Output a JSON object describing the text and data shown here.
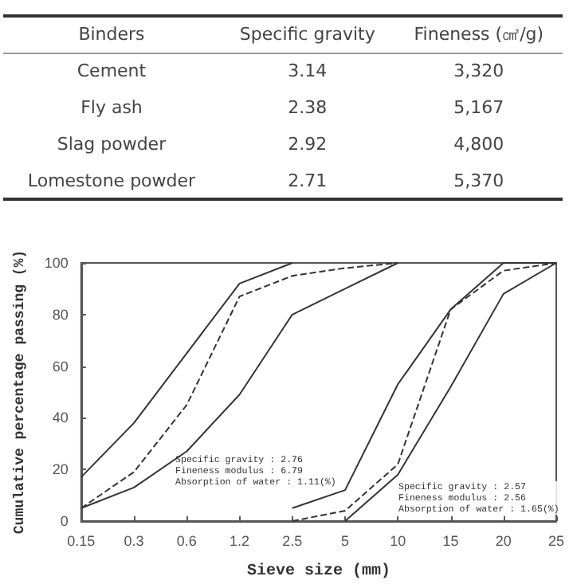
{
  "chart_data": [
    {
      "type": "other",
      "annotations": [
        "Binders",
        "Specific gravity",
        "Fineness (㎠/g)",
        "Cement",
        "3.14",
        "3,320",
        "Fly ash",
        "2.38",
        "5,167",
        "Slag powder",
        "2.92",
        "4,800",
        "Lomestone powder",
        "2.71",
        "5,370"
      ]
    },
    {
      "type": "line",
      "xlabel": "Sieve size (mm)",
      "ylabel": "Cumulative percentage passing (%)",
      "categories": [
        "0.15",
        "0.3",
        "0.6",
        "1.2",
        "2.5",
        "5",
        "10",
        "15",
        "20",
        "25"
      ],
      "series": [
        {
          "color": "#333333",
          "line_style": "solid",
          "values": [
            17,
            38,
            65,
            92,
            100,
            null,
            null,
            null,
            null,
            null
          ]
        },
        {
          "color": "#333333",
          "line_style": "dashed",
          "values": [
            5,
            19,
            45,
            87,
            95,
            98,
            100,
            null,
            null,
            null
          ]
        },
        {
          "color": "#333333",
          "line_style": "solid",
          "values": [
            5,
            13,
            27,
            49,
            80,
            90,
            100,
            null,
            null,
            null
          ]
        },
        {
          "color": "#333333",
          "line_style": "solid",
          "values": [
            null,
            null,
            null,
            null,
            5,
            12,
            53,
            82,
            100,
            100
          ]
        },
        {
          "color": "#333333",
          "line_style": "dashed",
          "values": [
            null,
            null,
            null,
            null,
            0,
            4,
            22,
            82,
            97,
            100
          ]
        },
        {
          "color": "#333333",
          "line_style": "solid",
          "values": [
            null,
            null,
            null,
            null,
            null,
            0,
            18,
            52,
            88,
            100
          ]
        }
      ],
      "ylim": [
        0,
        100
      ],
      "yticks": [
        0,
        20,
        40,
        60,
        80,
        100
      ],
      "grid": false,
      "marker": "none",
      "annotations": [
        "Specific gravity : 2.76\nFineness modulus : 6.79\nAbsorption of water : 1.11(%)",
        "Specific gravity : 2.57\nFineness modulus : 2.56\nAbsorption of water : 1.65(%)"
      ]
    }
  ]
}
